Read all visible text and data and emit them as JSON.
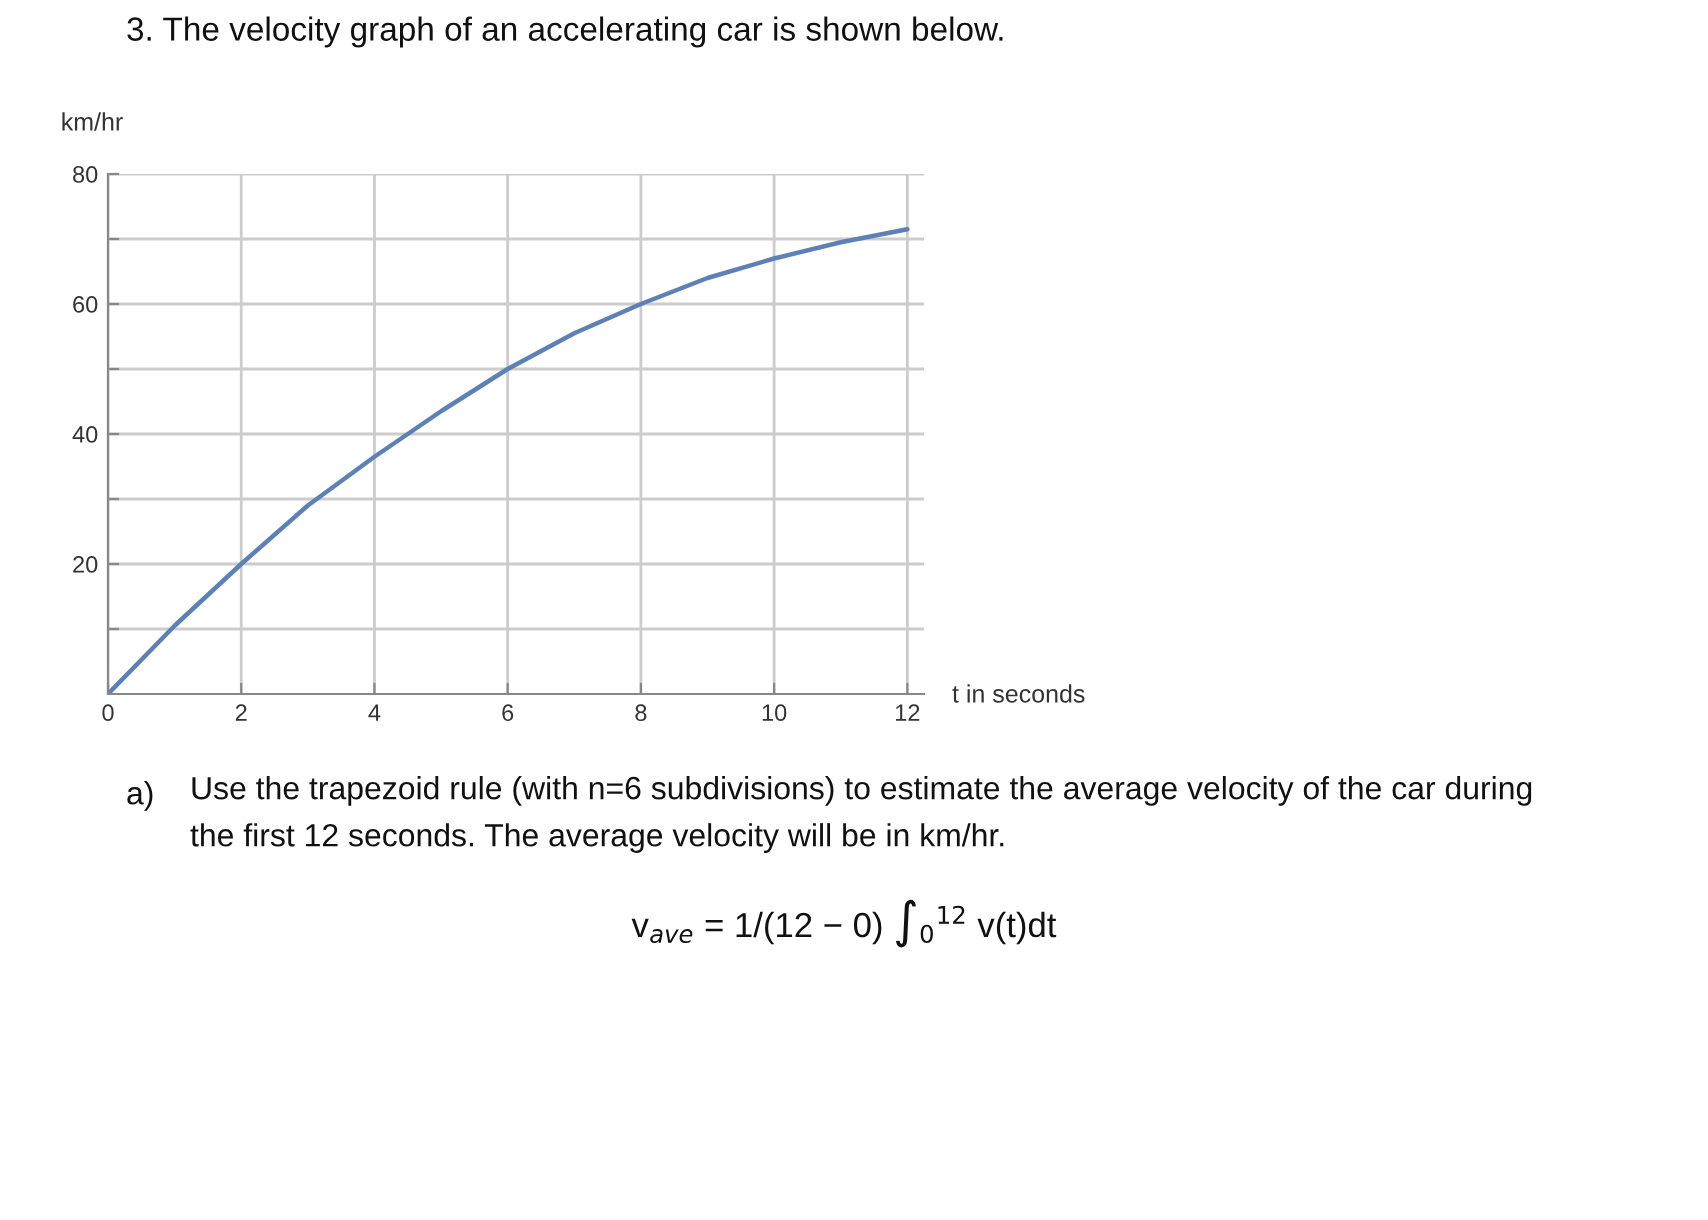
{
  "chart_data": {
    "type": "line",
    "title": "3. The velocity graph of an accelerating car is shown below.",
    "xlabel": "t in seconds",
    "ylabel": "km/hr",
    "annotations": [
      "a)",
      "Use the trapezoid rule (with n=6 subdivisions) to estimate the average velocity of the car during\nthe first 12 seconds. The average velocity will be in km/hr.",
      "v$_{ave}$ = 1/(12 − 0) ∫$_{0}$$^{12}$ v(t)dt"
    ],
    "x": [
      0,
      1,
      2,
      3,
      4,
      5,
      6,
      7,
      8,
      9,
      10,
      11,
      12
    ],
    "series": [
      {
        "color": "#5e81b5",
        "values": [
          0,
          10.5,
          20,
          29,
          36.5,
          43.5,
          50,
          55.5,
          60,
          64,
          67,
          69.5,
          71.5
        ]
      }
    ],
    "xlim": [
      0,
      12.25
    ],
    "ylim": [
      0,
      80
    ],
    "xticks": [
      0,
      2,
      4,
      6,
      8,
      10,
      12
    ],
    "yticks": [
      {
        "value": 10,
        "label": null
      },
      20,
      {
        "value": 30,
        "label": null
      },
      40,
      {
        "value": 50,
        "label": null
      },
      60,
      {
        "value": 70,
        "label": null
      },
      80
    ],
    "grid": true,
    "line_style": "solid"
  }
}
